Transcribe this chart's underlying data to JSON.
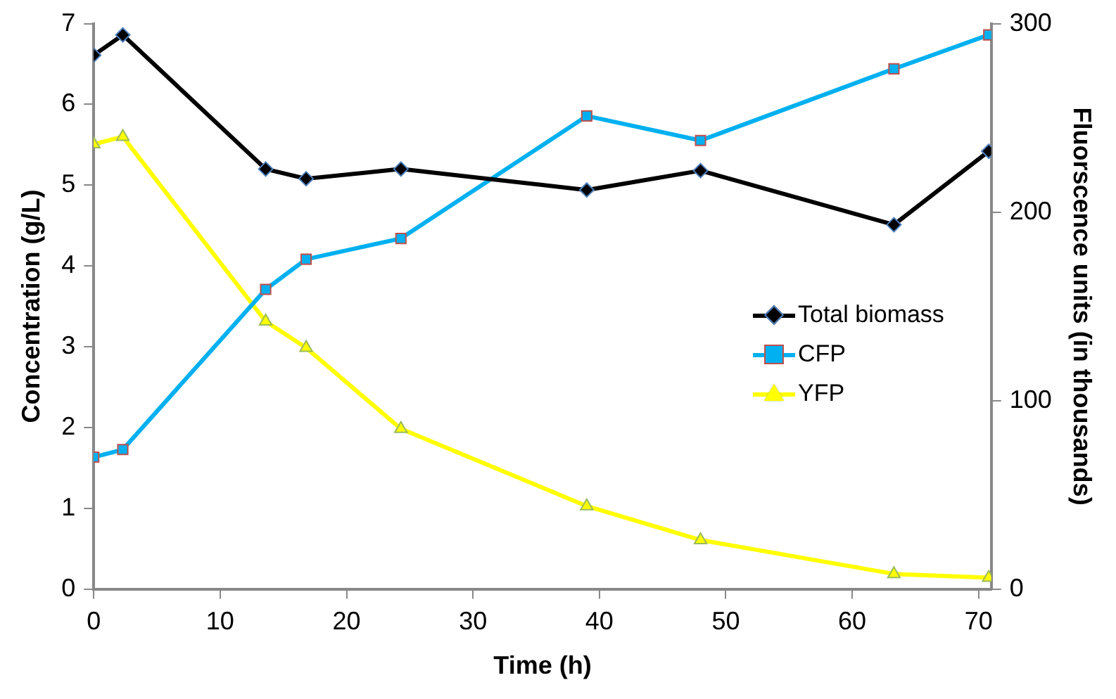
{
  "chart_data": {
    "type": "line",
    "xlabel": "Time (h)",
    "ylabel": "Concentration (g/L)",
    "y2label": "Fluorscence units (in thousands)",
    "xlim": [
      0,
      71
    ],
    "xticks": [
      0,
      10,
      20,
      30,
      40,
      50,
      60,
      70
    ],
    "ylim": [
      0,
      7
    ],
    "yticks": [
      0,
      1,
      2,
      3,
      4,
      5,
      6,
      7
    ],
    "y2lim": [
      0,
      300
    ],
    "y2ticks": [
      0,
      100,
      200,
      300
    ],
    "grid": false,
    "legend": "right",
    "line_style": "solid",
    "series": [
      {
        "name": "Total biomass",
        "color": "#000000",
        "marker": "diamond",
        "x": [
          0,
          2.3,
          13.6,
          16.8,
          24.3,
          39.0,
          48.0,
          63.3,
          70.8
        ],
        "values": [
          6.61,
          6.86,
          5.2,
          5.08,
          5.2,
          4.94,
          5.18,
          4.51,
          5.42
        ]
      },
      {
        "name": "CFP",
        "color": "#00b0f0",
        "marker": "square",
        "axis": "y2",
        "x": [
          0,
          2.3,
          13.6,
          16.8,
          24.3,
          39.0,
          48.0,
          63.3,
          70.8
        ],
        "values": [
          70,
          74,
          159,
          175,
          186,
          251,
          238,
          276,
          294
        ]
      },
      {
        "name": "YFP",
        "color": "#ffff00",
        "marker": "triangle",
        "axis": "y2",
        "x": [
          0,
          2.3,
          13.6,
          16.8,
          24.3,
          39.0,
          48.0,
          63.3,
          70.8
        ],
        "values": [
          236,
          240,
          142,
          128,
          85,
          44,
          26,
          8,
          6
        ]
      }
    ]
  }
}
